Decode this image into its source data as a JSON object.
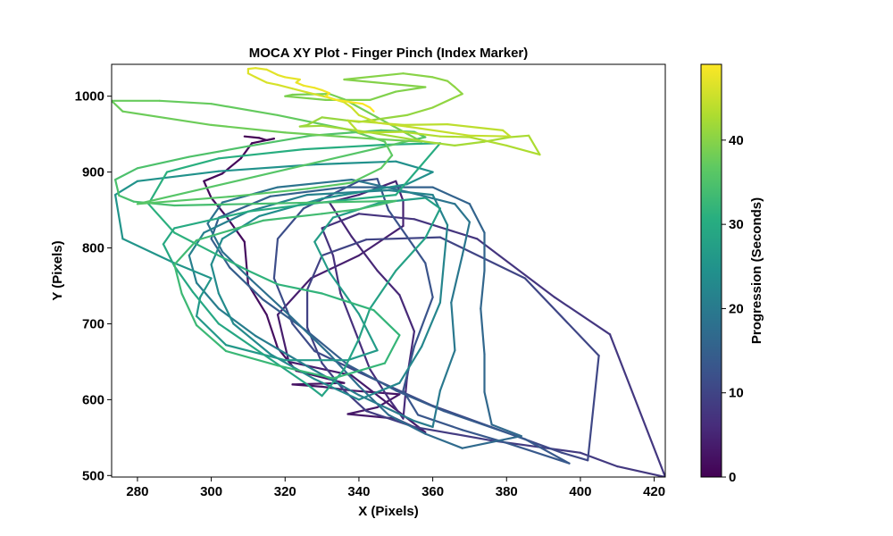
{
  "chart_data": {
    "type": "line",
    "title": "MOCA XY Plot - Finger Pinch (Index Marker)",
    "xlabel": "X (Pixels)",
    "ylabel": "Y (Pixels)",
    "xlim": [
      273,
      423
    ],
    "ylim": [
      498,
      1042
    ],
    "xticks": [
      280,
      300,
      320,
      340,
      360,
      380,
      400,
      420
    ],
    "yticks": [
      500,
      600,
      700,
      800,
      900,
      1000
    ],
    "grid": false,
    "colormap": "viridis",
    "colorbar": {
      "label": "Progression (Seconds)",
      "range": [
        0,
        49
      ],
      "ticks": [
        0,
        10,
        20,
        30,
        40
      ]
    },
    "series": [
      {
        "color_value_range": [
          0,
          49
        ],
        "points": [
          [
            309,
            947
          ],
          [
            313,
            945
          ],
          [
            315,
            942
          ],
          [
            317,
            944
          ],
          [
            311,
            938
          ],
          [
            308,
            918
          ],
          [
            303,
            898
          ],
          [
            298,
            888
          ],
          [
            300,
            866
          ],
          [
            304,
            842
          ],
          [
            309,
            808
          ],
          [
            310,
            752
          ],
          [
            315,
            712
          ],
          [
            318,
            668
          ],
          [
            323,
            638
          ],
          [
            336,
            622
          ],
          [
            322,
            620
          ],
          [
            330,
            617
          ],
          [
            338,
            612
          ],
          [
            351,
            607
          ],
          [
            345,
            590
          ],
          [
            337,
            581
          ],
          [
            350,
            575
          ],
          [
            358,
            557
          ],
          [
            338,
            632
          ],
          [
            321,
            650
          ],
          [
            318,
            712
          ],
          [
            327,
            760
          ],
          [
            340,
            790
          ],
          [
            352,
            829
          ],
          [
            352,
            862
          ],
          [
            350,
            888
          ],
          [
            340,
            870
          ],
          [
            332,
            860
          ],
          [
            338,
            815
          ],
          [
            345,
            770
          ],
          [
            351,
            738
          ],
          [
            355,
            690
          ],
          [
            353,
            628
          ],
          [
            352,
            575
          ],
          [
            348,
            602
          ],
          [
            343,
            640
          ],
          [
            339,
            690
          ],
          [
            335,
            740
          ],
          [
            333,
            790
          ],
          [
            330,
            826
          ],
          [
            340,
            845
          ],
          [
            355,
            838
          ],
          [
            372,
            812
          ],
          [
            378,
            790
          ],
          [
            393,
            735
          ],
          [
            408,
            686
          ],
          [
            423,
            498
          ],
          [
            410,
            512
          ],
          [
            400,
            530
          ],
          [
            376,
            546
          ],
          [
            355,
            564
          ],
          [
            342,
            585
          ],
          [
            336,
            612
          ],
          [
            330,
            648
          ],
          [
            326,
            695
          ],
          [
            326,
            745
          ],
          [
            330,
            790
          ],
          [
            342,
            811
          ],
          [
            362,
            814
          ],
          [
            385,
            760
          ],
          [
            405,
            658
          ],
          [
            402,
            520
          ],
          [
            395,
            530
          ],
          [
            360,
            592
          ],
          [
            340,
            636
          ],
          [
            328,
            664
          ],
          [
            322,
            700
          ],
          [
            317,
            760
          ],
          [
            318,
            812
          ],
          [
            325,
            852
          ],
          [
            340,
            888
          ],
          [
            345,
            891
          ],
          [
            348,
            850
          ],
          [
            353,
            815
          ],
          [
            358,
            780
          ],
          [
            360,
            735
          ],
          [
            355,
            670
          ],
          [
            352,
            612
          ],
          [
            356,
            580
          ],
          [
            368,
            560
          ],
          [
            380,
            543
          ],
          [
            397,
            516
          ],
          [
            385,
            548
          ],
          [
            363,
            585
          ],
          [
            350,
            612
          ],
          [
            337,
            646
          ],
          [
            326,
            690
          ],
          [
            314,
            732
          ],
          [
            305,
            774
          ],
          [
            300,
            812
          ],
          [
            302,
            840
          ],
          [
            316,
            868
          ],
          [
            336,
            880
          ],
          [
            360,
            880
          ],
          [
            370,
            858
          ],
          [
            374,
            820
          ],
          [
            374,
            770
          ],
          [
            373,
            720
          ],
          [
            374,
            660
          ],
          [
            374,
            610
          ],
          [
            376,
            567
          ],
          [
            384,
            552
          ],
          [
            368,
            536
          ],
          [
            358,
            555
          ],
          [
            348,
            580
          ],
          [
            340,
            618
          ],
          [
            332,
            660
          ],
          [
            321,
            712
          ],
          [
            311,
            757
          ],
          [
            303,
            795
          ],
          [
            299,
            832
          ],
          [
            303,
            860
          ],
          [
            318,
            880
          ],
          [
            338,
            890
          ],
          [
            353,
            874
          ],
          [
            366,
            858
          ],
          [
            370,
            834
          ],
          [
            368,
            790
          ],
          [
            365,
            728
          ],
          [
            366,
            665
          ],
          [
            362,
            612
          ],
          [
            360,
            564
          ],
          [
            355,
            572
          ],
          [
            340,
            606
          ],
          [
            326,
            644
          ],
          [
            312,
            684
          ],
          [
            302,
            720
          ],
          [
            296,
            754
          ],
          [
            294,
            790
          ],
          [
            298,
            820
          ],
          [
            310,
            848
          ],
          [
            326,
            870
          ],
          [
            348,
            876
          ],
          [
            360,
            870
          ],
          [
            364,
            830
          ],
          [
            363,
            780
          ],
          [
            362,
            728
          ],
          [
            357,
            670
          ],
          [
            351,
            622
          ],
          [
            340,
            600
          ],
          [
            328,
            627
          ],
          [
            316,
            660
          ],
          [
            306,
            700
          ],
          [
            302,
            740
          ],
          [
            300,
            778
          ],
          [
            303,
            812
          ],
          [
            313,
            842
          ],
          [
            330,
            865
          ],
          [
            353,
            884
          ],
          [
            360,
            900
          ],
          [
            350,
            914
          ],
          [
            328,
            910
          ],
          [
            302,
            901
          ],
          [
            280,
            888
          ],
          [
            274,
            870
          ],
          [
            276,
            812
          ],
          [
            290,
            780
          ],
          [
            300,
            760
          ],
          [
            297,
            735
          ],
          [
            296,
            710
          ],
          [
            304,
            672
          ],
          [
            320,
            652
          ],
          [
            337,
            652
          ],
          [
            345,
            665
          ],
          [
            340,
            713
          ],
          [
            332,
            768
          ],
          [
            328,
            808
          ],
          [
            333,
            840
          ],
          [
            346,
            860
          ],
          [
            358,
            866
          ],
          [
            362,
            852
          ],
          [
            358,
            813
          ],
          [
            350,
            770
          ],
          [
            343,
            720
          ],
          [
            340,
            680
          ],
          [
            336,
            640
          ],
          [
            330,
            605
          ],
          [
            326,
            620
          ],
          [
            314,
            660
          ],
          [
            302,
            700
          ],
          [
            295,
            742
          ],
          [
            290,
            776
          ],
          [
            287,
            805
          ],
          [
            290,
            826
          ],
          [
            310,
            848
          ],
          [
            330,
            860
          ],
          [
            350,
            870
          ],
          [
            362,
            938
          ],
          [
            347,
            936
          ],
          [
            325,
            930
          ],
          [
            302,
            918
          ],
          [
            288,
            900
          ],
          [
            283,
            858
          ],
          [
            290,
            820
          ],
          [
            300,
            795
          ],
          [
            310,
            770
          ],
          [
            318,
            752
          ],
          [
            330,
            740
          ],
          [
            344,
            718
          ],
          [
            351,
            685
          ],
          [
            347,
            648
          ],
          [
            333,
            628
          ],
          [
            318,
            645
          ],
          [
            304,
            664
          ],
          [
            296,
            698
          ],
          [
            292,
            740
          ],
          [
            290,
            778
          ],
          [
            296,
            810
          ],
          [
            314,
            836
          ],
          [
            330,
            845
          ],
          [
            340,
            851
          ],
          [
            350,
            862
          ],
          [
            290,
            856
          ],
          [
            279,
            861
          ],
          [
            275,
            869
          ],
          [
            274,
            890
          ],
          [
            280,
            905
          ],
          [
            294,
            920
          ],
          [
            310,
            934
          ],
          [
            327,
            948
          ],
          [
            346,
            955
          ],
          [
            355,
            953
          ],
          [
            358,
            946
          ],
          [
            280,
            858
          ],
          [
            306,
            868
          ],
          [
            326,
            878
          ],
          [
            338,
            886
          ],
          [
            346,
            905
          ],
          [
            349,
            922
          ],
          [
            347,
            940
          ],
          [
            337,
            956
          ],
          [
            318,
            975
          ],
          [
            300,
            990
          ],
          [
            286,
            994
          ],
          [
            273,
            994
          ],
          [
            276,
            980
          ],
          [
            300,
            962
          ],
          [
            320,
            952
          ],
          [
            343,
            944
          ],
          [
            357,
            940
          ],
          [
            336,
            996
          ],
          [
            332,
            1003
          ],
          [
            322,
            1002
          ],
          [
            320,
            1000
          ],
          [
            331,
            995
          ],
          [
            343,
            995
          ],
          [
            350,
            1006
          ],
          [
            358,
            1012
          ],
          [
            336,
            1022
          ],
          [
            352,
            1030
          ],
          [
            360,
            1025
          ],
          [
            364,
            1020
          ],
          [
            366,
            1012
          ],
          [
            368,
            1003
          ],
          [
            360,
            985
          ],
          [
            353,
            975
          ],
          [
            340,
            966
          ],
          [
            330,
            972
          ],
          [
            326,
            962
          ],
          [
            324,
            960
          ],
          [
            330,
            961
          ],
          [
            342,
            953
          ],
          [
            358,
            940
          ],
          [
            366,
            935
          ],
          [
            374,
            940
          ],
          [
            381,
            946
          ],
          [
            386,
            948
          ],
          [
            389,
            923
          ],
          [
            380,
            935
          ],
          [
            370,
            946
          ],
          [
            362,
            947
          ],
          [
            352,
            953
          ],
          [
            340,
            952
          ],
          [
            337,
            968
          ],
          [
            352,
            962
          ],
          [
            364,
            963
          ],
          [
            379,
            955
          ],
          [
            381,
            947
          ],
          [
            370,
            948
          ],
          [
            353,
            960
          ],
          [
            345,
            965
          ],
          [
            340,
            975
          ],
          [
            338,
            985
          ],
          [
            336,
            992
          ],
          [
            332,
            998
          ],
          [
            326,
            1005
          ],
          [
            322,
            1010
          ],
          [
            318,
            1015
          ],
          [
            315,
            1018
          ],
          [
            312,
            1025
          ],
          [
            310,
            1030
          ],
          [
            310,
            1036
          ],
          [
            312,
            1037
          ],
          [
            315,
            1035
          ],
          [
            318,
            1028
          ],
          [
            320,
            1025
          ],
          [
            324,
            1022
          ],
          [
            323,
            1018
          ],
          [
            325,
            1014
          ],
          [
            328,
            1011
          ],
          [
            330,
            1008
          ],
          [
            332,
            1004
          ],
          [
            331,
            1000
          ],
          [
            333,
            996
          ],
          [
            338,
            992
          ],
          [
            341,
            990
          ],
          [
            343,
            985
          ],
          [
            344,
            980
          ]
        ]
      }
    ]
  }
}
